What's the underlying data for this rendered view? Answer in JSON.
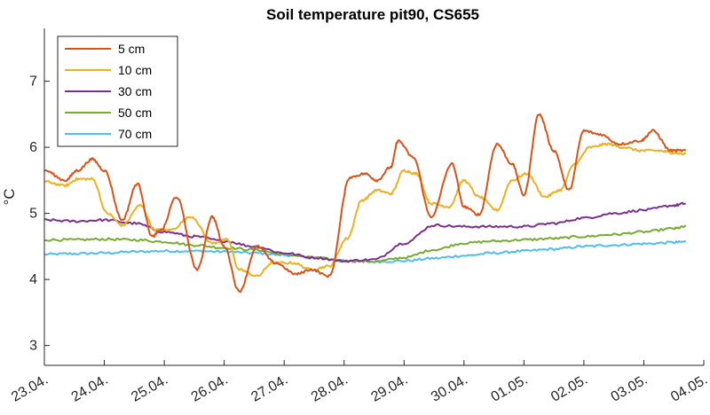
{
  "chart_data": {
    "type": "line",
    "title": "Soil temperature pit90, CS655",
    "xlabel": "",
    "ylabel": "°C",
    "xlim": [
      0,
      11
    ],
    "ylim": [
      2.7,
      7.8
    ],
    "x_tick_labels": [
      "23.04.",
      "24.04.",
      "25.04.",
      "26.04.",
      "27.04.",
      "28.04.",
      "29.04.",
      "30.04.",
      "01.05.",
      "02.05.",
      "03.05.",
      "04.05."
    ],
    "y_ticks": [
      3,
      4,
      5,
      6,
      7
    ],
    "grid": false,
    "legend_position": "top-left",
    "series": [
      {
        "name": "5 cm",
        "color": "#D95319",
        "x": [
          0,
          0.35,
          0.55,
          0.8,
          1.0,
          1.3,
          1.55,
          1.8,
          1.95,
          2.2,
          2.55,
          2.8,
          3.0,
          3.25,
          3.55,
          3.85,
          4.2,
          4.45,
          4.75,
          5.1,
          5.35,
          5.55,
          5.78,
          5.9,
          6.15,
          6.45,
          6.8,
          7.0,
          7.25,
          7.55,
          7.8,
          8.0,
          8.25,
          8.5,
          8.75,
          9.0,
          9.25,
          9.6,
          9.95,
          10.15,
          10.45,
          10.7
        ],
        "values": [
          5.65,
          5.5,
          5.65,
          5.82,
          5.65,
          4.9,
          5.45,
          4.65,
          4.75,
          5.25,
          4.15,
          4.95,
          4.5,
          3.82,
          4.5,
          4.25,
          4.08,
          4.15,
          4.05,
          5.55,
          5.6,
          5.5,
          5.7,
          6.1,
          5.85,
          4.95,
          5.75,
          5.1,
          4.98,
          6.05,
          5.75,
          5.28,
          6.5,
          5.95,
          5.35,
          6.25,
          6.2,
          6.05,
          6.1,
          6.25,
          5.95,
          5.95
        ]
      },
      {
        "name": "10 cm",
        "color": "#EDB120",
        "x": [
          0,
          0.35,
          0.55,
          0.8,
          1.05,
          1.3,
          1.6,
          1.85,
          2.1,
          2.45,
          2.8,
          3.05,
          3.25,
          3.55,
          3.8,
          4.15,
          4.45,
          4.75,
          5.05,
          5.3,
          5.55,
          5.78,
          6.0,
          6.2,
          6.45,
          6.75,
          7.0,
          7.25,
          7.55,
          7.8,
          8.05,
          8.35,
          8.6,
          8.85,
          9.1,
          9.4,
          9.65,
          9.95,
          10.25,
          10.45,
          10.7
        ],
        "values": [
          5.48,
          5.42,
          5.52,
          5.52,
          5.0,
          4.82,
          5.12,
          4.75,
          4.75,
          4.95,
          4.55,
          4.6,
          4.15,
          4.05,
          4.25,
          4.25,
          4.15,
          4.2,
          4.62,
          5.2,
          5.35,
          5.3,
          5.65,
          5.6,
          5.15,
          5.1,
          5.5,
          5.25,
          5.05,
          5.5,
          5.6,
          5.25,
          5.35,
          5.75,
          6.0,
          6.05,
          6.0,
          5.95,
          5.95,
          5.92,
          5.9
        ]
      },
      {
        "name": "30 cm",
        "color": "#7E2F8E",
        "x": [
          0,
          0.5,
          1.0,
          1.5,
          2.0,
          2.5,
          3.0,
          3.5,
          4.0,
          4.5,
          5.0,
          5.5,
          6.0,
          6.5,
          7.0,
          7.5,
          8.0,
          8.5,
          9.0,
          9.5,
          10.0,
          10.5,
          10.7
        ],
        "values": [
          4.9,
          4.88,
          4.9,
          4.85,
          4.72,
          4.65,
          4.58,
          4.5,
          4.4,
          4.33,
          4.28,
          4.3,
          4.55,
          4.82,
          4.8,
          4.8,
          4.8,
          4.85,
          4.93,
          5.0,
          5.05,
          5.12,
          5.15
        ]
      },
      {
        "name": "50 cm",
        "color": "#77AC30",
        "x": [
          0,
          0.5,
          1.0,
          1.5,
          2.0,
          2.5,
          3.0,
          3.5,
          4.0,
          4.5,
          5.0,
          5.5,
          6.0,
          6.5,
          7.0,
          7.5,
          8.0,
          8.5,
          9.0,
          9.5,
          10.0,
          10.5,
          10.7
        ],
        "values": [
          4.6,
          4.6,
          4.61,
          4.6,
          4.57,
          4.52,
          4.48,
          4.45,
          4.38,
          4.33,
          4.28,
          4.27,
          4.33,
          4.45,
          4.55,
          4.58,
          4.6,
          4.62,
          4.65,
          4.68,
          4.72,
          4.77,
          4.8
        ]
      },
      {
        "name": "70 cm",
        "color": "#4DBEEE",
        "x": [
          0,
          0.5,
          1.0,
          1.5,
          2.0,
          2.5,
          3.0,
          3.5,
          4.0,
          4.5,
          5.0,
          5.5,
          6.0,
          6.5,
          7.0,
          7.5,
          8.0,
          8.5,
          9.0,
          9.5,
          10.0,
          10.5,
          10.7
        ],
        "values": [
          4.38,
          4.39,
          4.4,
          4.42,
          4.43,
          4.43,
          4.42,
          4.4,
          4.37,
          4.33,
          4.29,
          4.27,
          4.28,
          4.32,
          4.36,
          4.4,
          4.43,
          4.46,
          4.5,
          4.52,
          4.54,
          4.56,
          4.57
        ]
      }
    ]
  }
}
